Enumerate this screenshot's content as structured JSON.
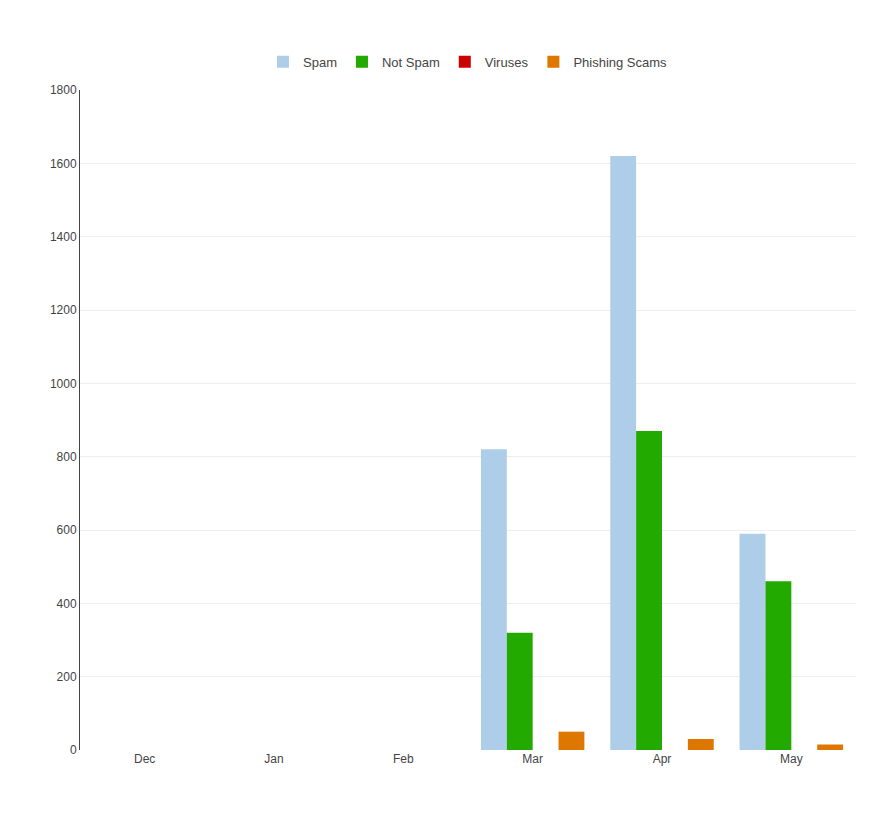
{
  "chart_data": {
    "type": "bar",
    "categories": [
      "Dec",
      "Jan",
      "Feb",
      "Mar",
      "Apr",
      "May"
    ],
    "series": [
      {
        "name": "Spam",
        "color": "#aecde8",
        "values": [
          0,
          0,
          0,
          820,
          1620,
          590
        ]
      },
      {
        "name": "Not Spam",
        "color": "#22aa00",
        "values": [
          0,
          0,
          0,
          320,
          870,
          460
        ]
      },
      {
        "name": "Viruses",
        "color": "#cc0000",
        "values": [
          0,
          0,
          0,
          0,
          0,
          0
        ]
      },
      {
        "name": "Phishing Scams",
        "color": "#dd7700",
        "values": [
          0,
          0,
          0,
          50,
          30,
          15
        ]
      }
    ],
    "ylim": [
      0,
      1800
    ],
    "yticks": [
      0,
      200,
      400,
      600,
      800,
      1000,
      1200,
      1400,
      1600,
      1800
    ],
    "grid": true,
    "legend": "top"
  }
}
